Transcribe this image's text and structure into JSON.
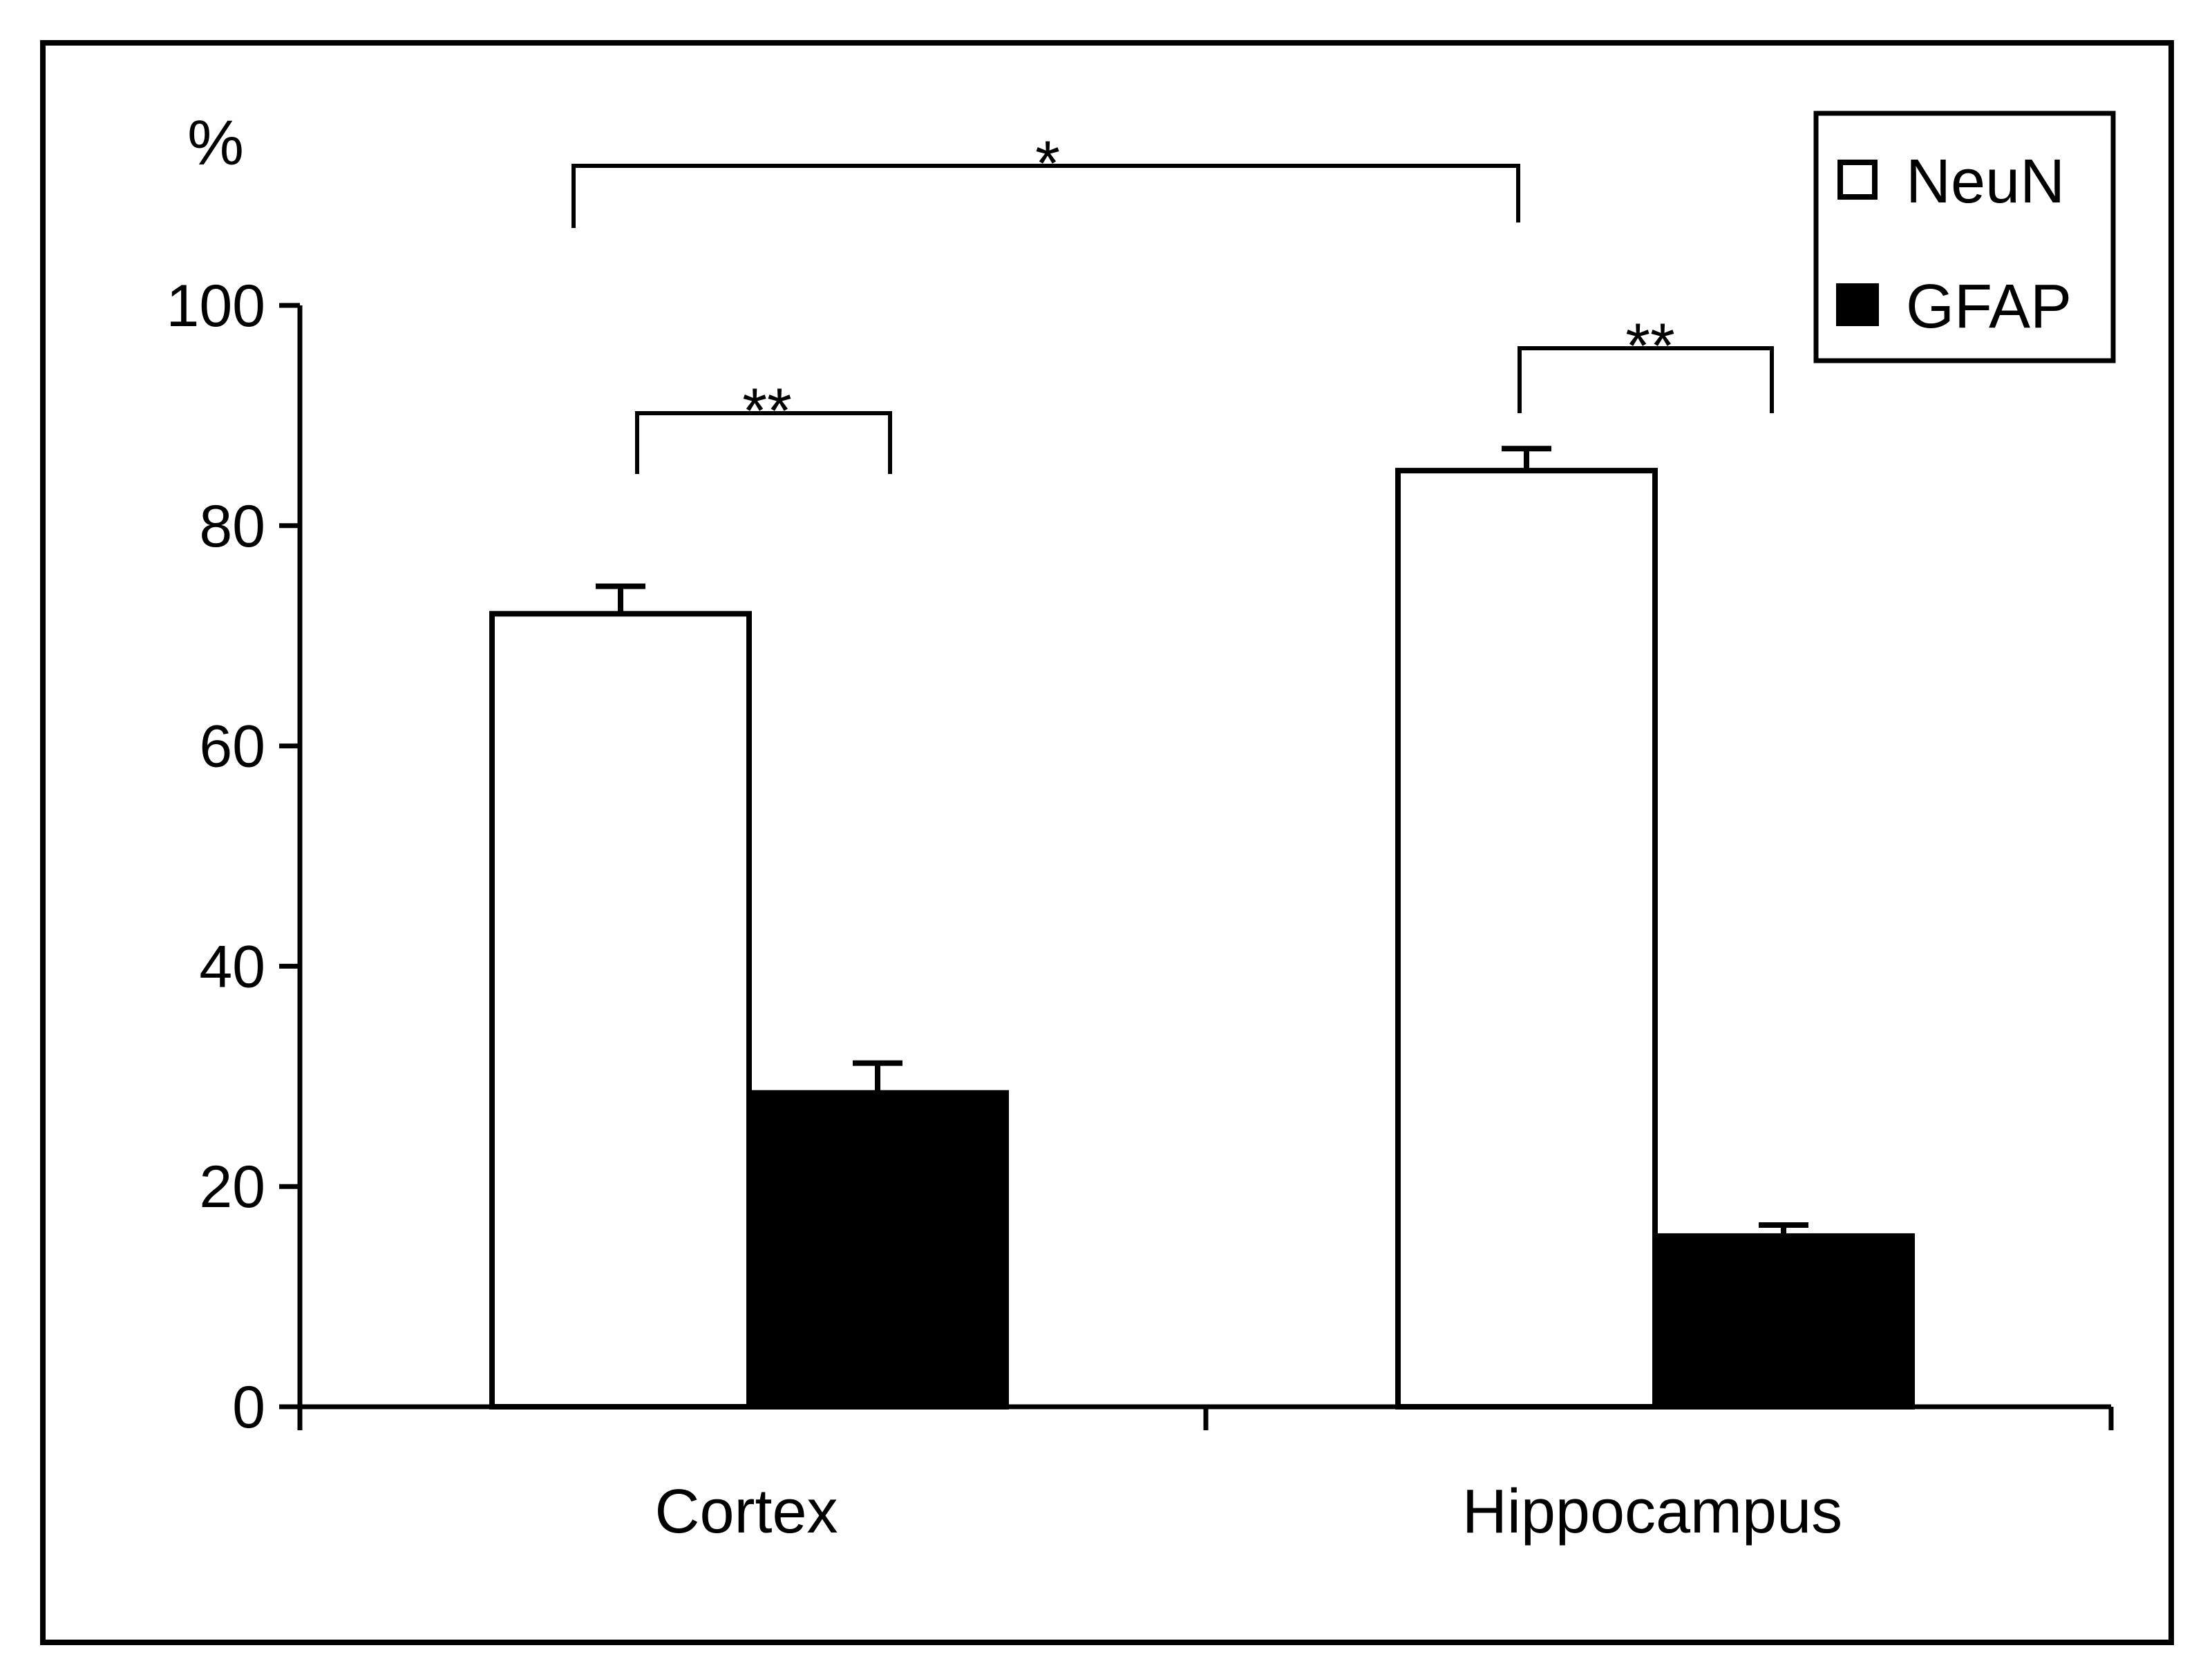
{
  "chart_data": {
    "type": "bar",
    "ylabel": "%",
    "xlabel": "",
    "ylim": [
      0,
      100
    ],
    "yticks": [
      0,
      20,
      40,
      60,
      80,
      100
    ],
    "ytick_labels": [
      "0",
      "20",
      "40",
      "60",
      "80",
      "100"
    ],
    "categories": [
      "Cortex",
      "Hippocampus"
    ],
    "series": [
      {
        "name": "NeuN",
        "color": "#ffffff",
        "values": [
          72,
          85
        ],
        "errors": [
          2.5,
          2
        ]
      },
      {
        "name": "GFAP",
        "color": "#000000",
        "values": [
          28.5,
          15.5
        ],
        "errors": [
          2.7,
          1
        ]
      }
    ],
    "legend": {
      "position": "top-right",
      "entries": [
        "NeuN",
        "GFAP"
      ]
    },
    "significance": [
      {
        "label": "*",
        "from": "Cortex NeuN",
        "to": "Hippocampus NeuN"
      },
      {
        "label": "**",
        "from": "Cortex NeuN",
        "to": "Cortex GFAP"
      },
      {
        "label": "**",
        "from": "Hippocampus NeuN",
        "to": "Hippocampus GFAP"
      }
    ],
    "grid": false,
    "colors": {
      "axis": "#000000",
      "frame": "#000000",
      "background": "#ffffff"
    }
  }
}
